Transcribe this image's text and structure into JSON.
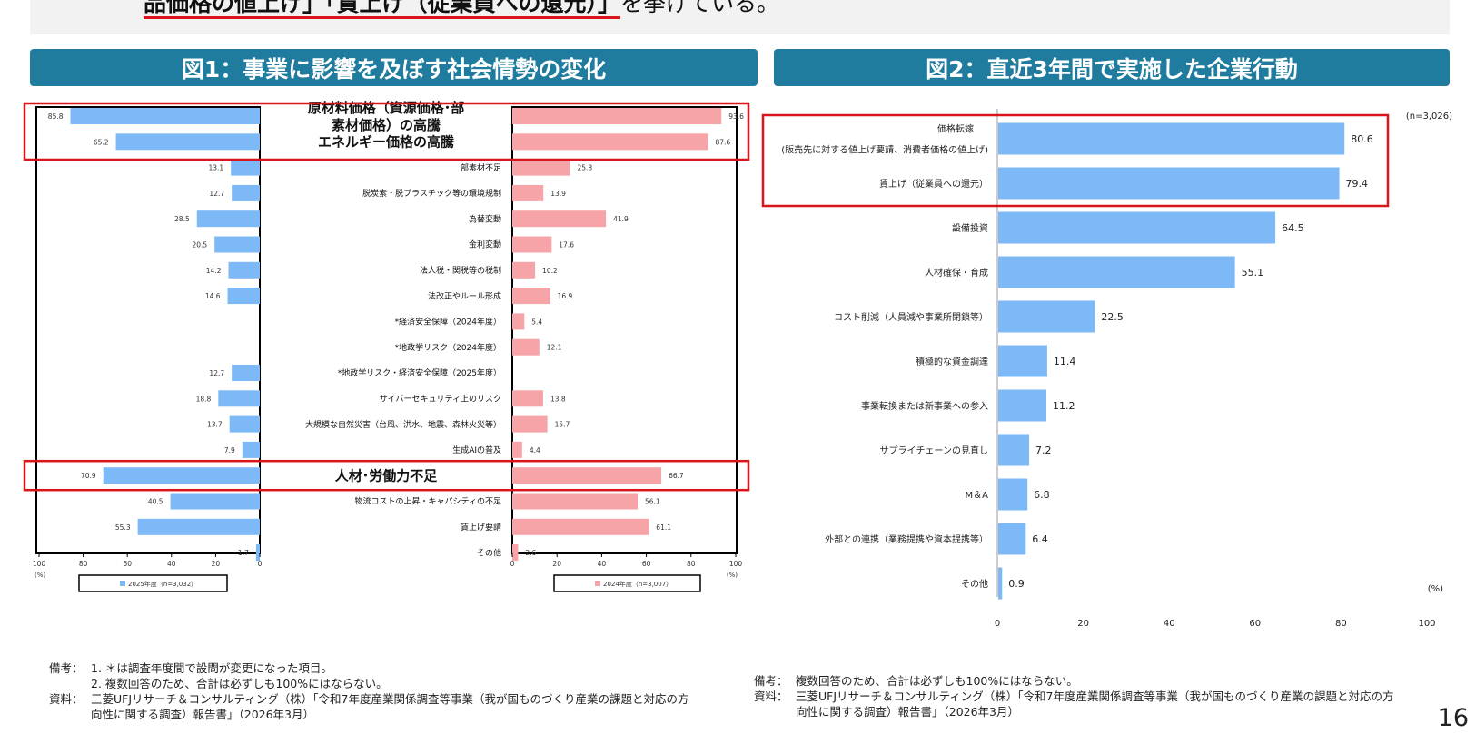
{
  "header": {
    "top_text_underlined": "品価格の値上げ」「賃上げ（従業員への還元）」",
    "top_text_rest": "を挙げている。"
  },
  "fig1": {
    "title": "図1：事業に影響を及ぼす社会情勢の変化"
  },
  "fig2": {
    "title": "図2：直近3年間で実施した企業行動"
  },
  "chart_data": [
    {
      "type": "bar",
      "orientation": "horizontal-butterfly",
      "categories": [
        "原材料価格（資源価格・部素材価格）の高騰",
        "エネルギー価格の高騰",
        "部素材不足",
        "脱炭素・脱プラスチック等の環境規制",
        "為替変動",
        "金利変動",
        "法人税・関税等の税制",
        "法改正やルール形成",
        "*経済安全保障（2024年度）",
        "*地政学リスク（2024年度）",
        "*地政学リスク・経済安全保障（2025年度）",
        "サイバーセキュリティ上のリスク",
        "大規模な自然災害（台風、洪水、地震、森林火災等）",
        "生成AIの普及",
        "人材･労働力不足",
        "物流コストの上昇・キャパシティの不足",
        "賃上げ要請",
        "その他"
      ],
      "label_lines": [
        [
          "原材料価格（資源価格･部",
          "素材価格）の高騰"
        ],
        [
          "エネルギー価格の高騰"
        ],
        [
          "部素材不足"
        ],
        [
          "脱炭素・脱プラスチック等の環境規制"
        ],
        [
          "為替変動"
        ],
        [
          "金利変動"
        ],
        [
          "法人税・関税等の税制"
        ],
        [
          "法改正やルール形成"
        ],
        [
          "*経済安全保障（2024年度）"
        ],
        [
          "*地政学リスク（2024年度）"
        ],
        [
          "*地政学リスク・経済安全保障（2025年度）"
        ],
        [
          "サイバーセキュリティ上のリスク"
        ],
        [
          "大規模な自然災害（台風、洪水、地震、森林火災等）"
        ],
        [
          "生成AIの普及"
        ],
        [
          "人材･労働力不足"
        ],
        [
          "物流コストの上昇・キャパシティの不足"
        ],
        [
          "賃上げ要請"
        ],
        [
          "その他"
        ]
      ],
      "emphasized": [
        0,
        1,
        14
      ],
      "series": [
        {
          "name": "2025年度（n=3,032）",
          "color": "#7db9f6",
          "values": [
            85.8,
            65.2,
            13.1,
            12.7,
            28.5,
            20.5,
            14.2,
            14.6,
            null,
            null,
            12.7,
            18.8,
            13.7,
            7.9,
            70.9,
            40.5,
            55.3,
            1.7
          ]
        },
        {
          "name": "2024年度（n=3,007）",
          "color": "#f7a4a8",
          "values": [
            93.6,
            87.6,
            25.8,
            13.9,
            41.9,
            17.6,
            10.2,
            16.9,
            5.4,
            12.1,
            null,
            13.8,
            15.7,
            4.4,
            66.7,
            56.1,
            61.1,
            2.6
          ]
        }
      ],
      "xlim": [
        0,
        100
      ],
      "ticks": [
        "0",
        "20",
        "40",
        "60",
        "80",
        "100"
      ],
      "unit": "(%)"
    },
    {
      "type": "bar",
      "orientation": "horizontal",
      "n_label": "(n=3,026)",
      "unit": "(%)",
      "categories": [
        "価格転嫁（販売先に対する値上げ要請、消費者価格の値上げ）",
        "賃上げ（従業員への還元）",
        "設備投資",
        "人材確保・育成",
        "コスト削減（人員減や事業所閉鎖等）",
        "積極的な資金調達",
        "事業転換または新事業への参入",
        "サプライチェーンの見直し",
        "M＆A",
        "外部との連携（業務提携や資本提携等）",
        "その他"
      ],
      "label_lines": [
        [
          "価格転嫁",
          "(販売先に対する値上げ要請、消費者価格の値上げ)"
        ],
        [
          "賃上げ（従業員への還元）"
        ],
        [
          "設備投資"
        ],
        [
          "人材確保・育成"
        ],
        [
          "コスト削減（人員減や事業所閉鎖等）"
        ],
        [
          "積極的な資金調達"
        ],
        [
          "事業転換または新事業への参入"
        ],
        [
          "サプライチェーンの見直し"
        ],
        [
          "M＆A"
        ],
        [
          "外部との連携（業務提携や資本提携等）"
        ],
        [
          "その他"
        ]
      ],
      "values": [
        80.6,
        79.4,
        64.5,
        55.1,
        22.5,
        11.4,
        11.2,
        7.2,
        6.8,
        6.4,
        0.9
      ],
      "color": "#7db9f6",
      "emphasized": [
        0,
        1
      ],
      "xlim": [
        0,
        100
      ],
      "ticks": [
        "0",
        "20",
        "40",
        "60",
        "80",
        "100"
      ]
    }
  ],
  "notes_left": {
    "label1": "備考：",
    "lines1": [
      "1. ＊は調査年度間で設問が変更になった項目。",
      "2. 複数回答のため、合計は必ずしも100%にはならない。"
    ],
    "label2": "資料：",
    "lines2": [
      "三菱UFJリサーチ＆コンサルティング（株）「令和7年度産業関係調査等事業（我が国ものづくり産業の課題と対応の方",
      "向性に関する調査）報告書」（2026年3月）"
    ]
  },
  "notes_right": {
    "label1": "備考：",
    "lines1": [
      "複数回答のため、合計は必ずしも100%にはならない。"
    ],
    "label2": "資料：",
    "lines2": [
      "三菱UFJリサーチ＆コンサルティング（株）「令和7年度産業関係調査等事業（我が国ものづくり産業の課題と対応の方",
      "向性に関する調査）報告書」（2026年3月）"
    ]
  },
  "page_number": "16"
}
